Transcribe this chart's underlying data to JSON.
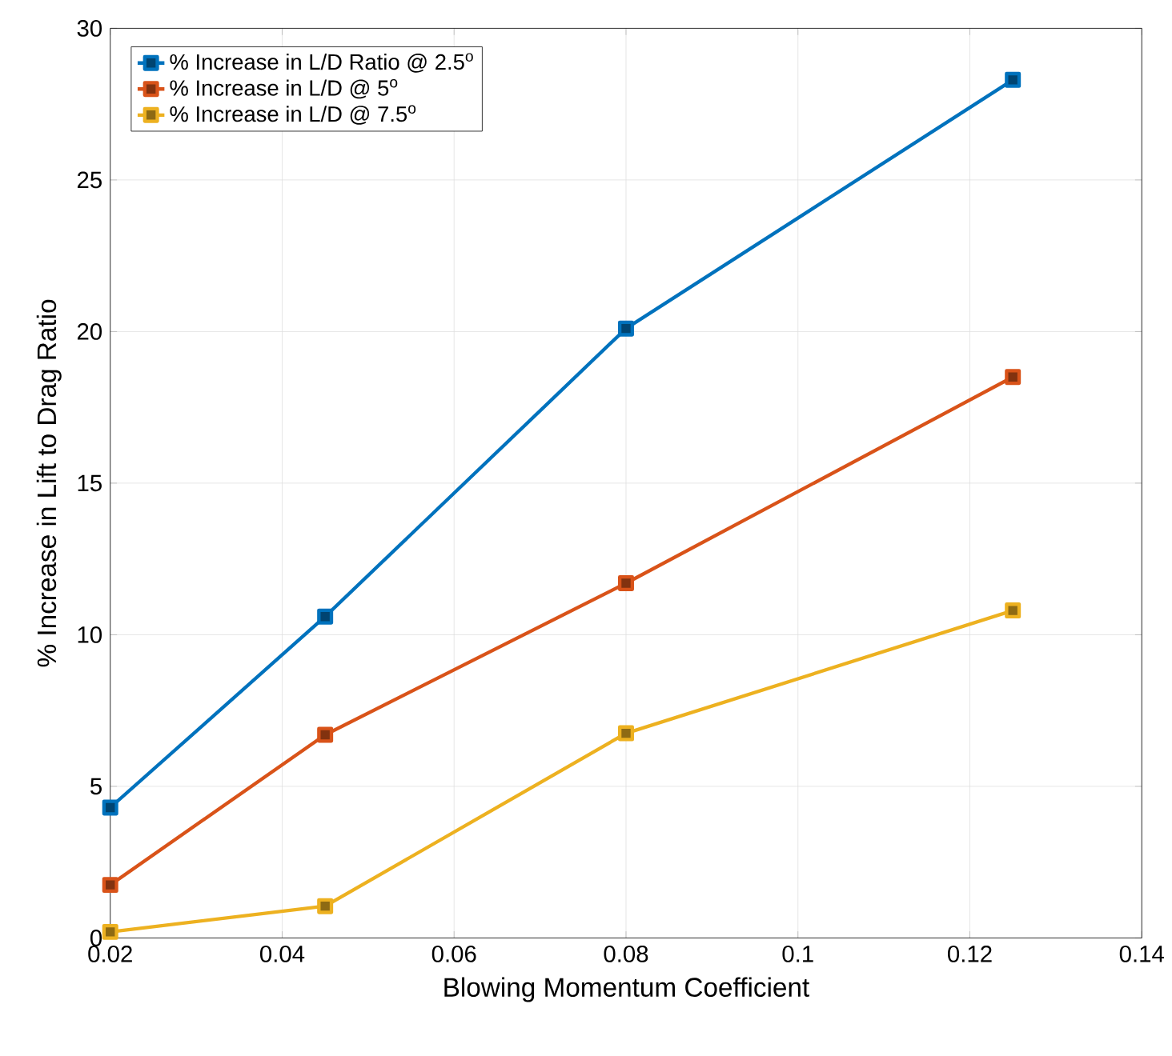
{
  "chart_data": {
    "type": "line",
    "xlabel": "Blowing Momentum Coefficient",
    "ylabel": "% Increase in Lift to Drag Ratio",
    "x": [
      0.02,
      0.045,
      0.08,
      0.125
    ],
    "series": [
      {
        "name": "% Increase in L/D Ratio @ 2.5$^{o}$",
        "color": "#0072bd",
        "values": [
          4.3,
          10.6,
          20.1,
          28.3
        ]
      },
      {
        "name": "% Increase in L/D @ 5$^{o}$",
        "color": "#d95319",
        "values": [
          1.75,
          6.7,
          11.7,
          18.5
        ]
      },
      {
        "name": "% Increase in L/D @ 7.5$^{o}$",
        "color": "#edb120",
        "values": [
          0.2,
          1.05,
          6.75,
          10.8
        ]
      }
    ],
    "xlim": [
      0.02,
      0.14
    ],
    "ylim": [
      0,
      30
    ],
    "xticks": [
      0.02,
      0.04,
      0.06,
      0.08,
      0.1,
      0.12,
      0.14
    ],
    "yticks": [
      0,
      5,
      10,
      15,
      20,
      25,
      30
    ],
    "grid": true,
    "legend": "top left",
    "marker": "square",
    "line_style": "solid"
  }
}
